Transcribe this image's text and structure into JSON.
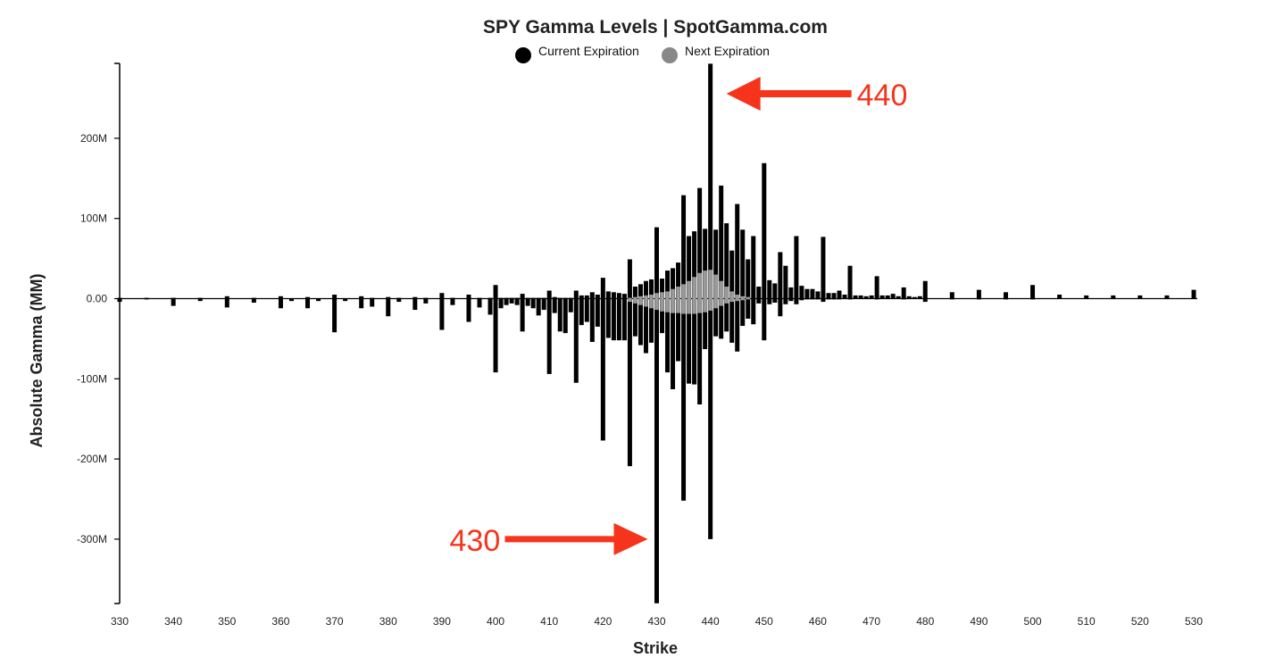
{
  "chart_data": {
    "type": "bar",
    "title": "SPY Gamma Levels | SpotGamma.com",
    "xlabel": "Strike",
    "ylabel": "Absolute Gamma (MM)",
    "xlim": [
      330,
      530
    ],
    "ylim": [
      -380,
      293
    ],
    "x_ticks": [
      "330",
      "340",
      "350",
      "360",
      "370",
      "380",
      "390",
      "400",
      "410",
      "420",
      "430",
      "440",
      "450",
      "460",
      "470",
      "480",
      "490",
      "500",
      "510",
      "520",
      "530"
    ],
    "y_ticks": [
      {
        "value": 200,
        "label": "200M"
      },
      {
        "value": 100,
        "label": "100M"
      },
      {
        "value": 0,
        "label": "0.00"
      },
      {
        "value": -100,
        "label": "-100M"
      },
      {
        "value": -200,
        "label": "-200M"
      },
      {
        "value": -300,
        "label": "-300M"
      }
    ],
    "colors": {
      "current": "#000000",
      "next": "#999999",
      "annotation": "#f5341b"
    },
    "legend": {
      "placement": "top-center",
      "entries": [
        {
          "name": "Current Expiration",
          "color": "#000000"
        },
        {
          "name": "Next Expiration",
          "color": "#888888"
        }
      ]
    },
    "series": [
      {
        "name": "Current Expiration",
        "points": [
          {
            "x": 330,
            "pos": 1,
            "neg": -4
          },
          {
            "x": 335,
            "pos": 1,
            "neg": -1
          },
          {
            "x": 340,
            "pos": 1,
            "neg": -9
          },
          {
            "x": 345,
            "pos": 1,
            "neg": -3
          },
          {
            "x": 350,
            "pos": 3,
            "neg": -11
          },
          {
            "x": 355,
            "pos": 1,
            "neg": -5
          },
          {
            "x": 360,
            "pos": 3,
            "neg": -12
          },
          {
            "x": 362,
            "pos": 0,
            "neg": -3
          },
          {
            "x": 365,
            "pos": 2,
            "neg": -12
          },
          {
            "x": 367,
            "pos": 0,
            "neg": -3
          },
          {
            "x": 370,
            "pos": 5,
            "neg": -42
          },
          {
            "x": 372,
            "pos": 0,
            "neg": -3
          },
          {
            "x": 375,
            "pos": 3,
            "neg": -12
          },
          {
            "x": 377,
            "pos": 1,
            "neg": -10
          },
          {
            "x": 380,
            "pos": 2,
            "neg": -22
          },
          {
            "x": 382,
            "pos": 1,
            "neg": -4
          },
          {
            "x": 385,
            "pos": 2,
            "neg": -14
          },
          {
            "x": 387,
            "pos": 1,
            "neg": -6
          },
          {
            "x": 390,
            "pos": 7,
            "neg": -39
          },
          {
            "x": 392,
            "pos": 1,
            "neg": -8
          },
          {
            "x": 395,
            "pos": 5,
            "neg": -29
          },
          {
            "x": 397,
            "pos": 1,
            "neg": -11
          },
          {
            "x": 399,
            "pos": 1,
            "neg": -20
          },
          {
            "x": 400,
            "pos": 17,
            "neg": -92
          },
          {
            "x": 401,
            "pos": 1,
            "neg": -12
          },
          {
            "x": 402,
            "pos": 1,
            "neg": -8
          },
          {
            "x": 403,
            "pos": 1,
            "neg": -6
          },
          {
            "x": 404,
            "pos": 1,
            "neg": -8
          },
          {
            "x": 405,
            "pos": 6,
            "neg": -41
          },
          {
            "x": 406,
            "pos": 1,
            "neg": -9
          },
          {
            "x": 407,
            "pos": 1,
            "neg": -12
          },
          {
            "x": 408,
            "pos": 1,
            "neg": -21
          },
          {
            "x": 409,
            "pos": 1,
            "neg": -14
          },
          {
            "x": 410,
            "pos": 10,
            "neg": -94
          },
          {
            "x": 411,
            "pos": 2,
            "neg": -18
          },
          {
            "x": 412,
            "pos": 1,
            "neg": -41
          },
          {
            "x": 413,
            "pos": 1,
            "neg": -43
          },
          {
            "x": 414,
            "pos": 1,
            "neg": -17
          },
          {
            "x": 415,
            "pos": 10,
            "neg": -105
          },
          {
            "x": 416,
            "pos": 4,
            "neg": -33
          },
          {
            "x": 417,
            "pos": 4,
            "neg": -29
          },
          {
            "x": 418,
            "pos": 8,
            "neg": -54
          },
          {
            "x": 419,
            "pos": 5,
            "neg": -35
          },
          {
            "x": 420,
            "pos": 26,
            "neg": -177
          },
          {
            "x": 421,
            "pos": 9,
            "neg": -49
          },
          {
            "x": 422,
            "pos": 8,
            "neg": -52
          },
          {
            "x": 423,
            "pos": 7,
            "neg": -52
          },
          {
            "x": 424,
            "pos": 6,
            "neg": -52
          },
          {
            "x": 425,
            "pos": 49,
            "neg": -209
          },
          {
            "x": 426,
            "pos": 15,
            "neg": -47
          },
          {
            "x": 427,
            "pos": 18,
            "neg": -58
          },
          {
            "x": 428,
            "pos": 22,
            "neg": -68
          },
          {
            "x": 429,
            "pos": 24,
            "neg": -55
          },
          {
            "x": 430,
            "pos": 89,
            "neg": -380
          },
          {
            "x": 431,
            "pos": 25,
            "neg": -43
          },
          {
            "x": 432,
            "pos": 35,
            "neg": -92
          },
          {
            "x": 433,
            "pos": 38,
            "neg": -113
          },
          {
            "x": 434,
            "pos": 45,
            "neg": -78
          },
          {
            "x": 435,
            "pos": 129,
            "neg": -252
          },
          {
            "x": 436,
            "pos": 78,
            "neg": -106
          },
          {
            "x": 437,
            "pos": 84,
            "neg": -107
          },
          {
            "x": 438,
            "pos": 138,
            "neg": -132
          },
          {
            "x": 439,
            "pos": 87,
            "neg": -63
          },
          {
            "x": 440,
            "pos": 293,
            "neg": -300
          },
          {
            "x": 441,
            "pos": 86,
            "neg": -47
          },
          {
            "x": 442,
            "pos": 141,
            "neg": -50
          },
          {
            "x": 443,
            "pos": 94,
            "neg": -41
          },
          {
            "x": 444,
            "pos": 60,
            "neg": -55
          },
          {
            "x": 445,
            "pos": 118,
            "neg": -66
          },
          {
            "x": 446,
            "pos": 86,
            "neg": -34
          },
          {
            "x": 447,
            "pos": 49,
            "neg": -25
          },
          {
            "x": 448,
            "pos": 78,
            "neg": -32
          },
          {
            "x": 449,
            "pos": 15,
            "neg": -6
          },
          {
            "x": 450,
            "pos": 169,
            "neg": -52
          },
          {
            "x": 451,
            "pos": 23,
            "neg": -7
          },
          {
            "x": 452,
            "pos": 19,
            "neg": -5
          },
          {
            "x": 453,
            "pos": 58,
            "neg": -22
          },
          {
            "x": 454,
            "pos": 41,
            "neg": -7
          },
          {
            "x": 455,
            "pos": 14,
            "neg": -3
          },
          {
            "x": 456,
            "pos": 78,
            "neg": -7
          },
          {
            "x": 457,
            "pos": 16,
            "neg": -2
          },
          {
            "x": 458,
            "pos": 12,
            "neg": -1
          },
          {
            "x": 459,
            "pos": 12,
            "neg": -1
          },
          {
            "x": 460,
            "pos": 9,
            "neg": -1
          },
          {
            "x": 461,
            "pos": 77,
            "neg": -4
          },
          {
            "x": 462,
            "pos": 7,
            "neg": -1
          },
          {
            "x": 463,
            "pos": 7,
            "neg": -1
          },
          {
            "x": 464,
            "pos": 10,
            "neg": -1
          },
          {
            "x": 465,
            "pos": 5,
            "neg": 0
          },
          {
            "x": 466,
            "pos": 41,
            "neg": -1
          },
          {
            "x": 467,
            "pos": 4,
            "neg": 0
          },
          {
            "x": 468,
            "pos": 4,
            "neg": 0
          },
          {
            "x": 469,
            "pos": 3,
            "neg": 0
          },
          {
            "x": 470,
            "pos": 4,
            "neg": 0
          },
          {
            "x": 471,
            "pos": 28,
            "neg": -1
          },
          {
            "x": 472,
            "pos": 4,
            "neg": 0
          },
          {
            "x": 473,
            "pos": 4,
            "neg": 0
          },
          {
            "x": 474,
            "pos": 6,
            "neg": 0
          },
          {
            "x": 475,
            "pos": 3,
            "neg": 0
          },
          {
            "x": 476,
            "pos": 14,
            "neg": -1
          },
          {
            "x": 477,
            "pos": 3,
            "neg": 0
          },
          {
            "x": 478,
            "pos": 2,
            "neg": 0
          },
          {
            "x": 479,
            "pos": 3,
            "neg": 0
          },
          {
            "x": 480,
            "pos": 22,
            "neg": -4
          },
          {
            "x": 485,
            "pos": 8,
            "neg": -1
          },
          {
            "x": 490,
            "pos": 11,
            "neg": -1
          },
          {
            "x": 495,
            "pos": 8,
            "neg": -1
          },
          {
            "x": 500,
            "pos": 17,
            "neg": -1
          },
          {
            "x": 505,
            "pos": 5,
            "neg": 0
          },
          {
            "x": 510,
            "pos": 4,
            "neg": 0
          },
          {
            "x": 515,
            "pos": 4,
            "neg": 0
          },
          {
            "x": 520,
            "pos": 4,
            "neg": 0
          },
          {
            "x": 525,
            "pos": 4,
            "neg": 0
          },
          {
            "x": 530,
            "pos": 11,
            "neg": 0
          }
        ]
      },
      {
        "name": "Next Expiration",
        "points": [
          {
            "x": 425,
            "pos": 1,
            "neg": -4
          },
          {
            "x": 426,
            "pos": 2,
            "neg": -6
          },
          {
            "x": 427,
            "pos": 3,
            "neg": -8
          },
          {
            "x": 428,
            "pos": 4,
            "neg": -10
          },
          {
            "x": 429,
            "pos": 5,
            "neg": -12
          },
          {
            "x": 430,
            "pos": 7,
            "neg": -14
          },
          {
            "x": 431,
            "pos": 8,
            "neg": -16
          },
          {
            "x": 432,
            "pos": 9,
            "neg": -17
          },
          {
            "x": 433,
            "pos": 12,
            "neg": -18
          },
          {
            "x": 434,
            "pos": 15,
            "neg": -18
          },
          {
            "x": 435,
            "pos": 18,
            "neg": -19
          },
          {
            "x": 436,
            "pos": 22,
            "neg": -19
          },
          {
            "x": 437,
            "pos": 27,
            "neg": -19
          },
          {
            "x": 438,
            "pos": 32,
            "neg": -18
          },
          {
            "x": 439,
            "pos": 35,
            "neg": -17
          },
          {
            "x": 440,
            "pos": 36,
            "neg": -15
          },
          {
            "x": 441,
            "pos": 30,
            "neg": -12
          },
          {
            "x": 442,
            "pos": 22,
            "neg": -9
          },
          {
            "x": 443,
            "pos": 15,
            "neg": -6
          },
          {
            "x": 444,
            "pos": 9,
            "neg": -4
          },
          {
            "x": 445,
            "pos": 5,
            "neg": -3
          },
          {
            "x": 446,
            "pos": 3,
            "neg": -2
          },
          {
            "x": 447,
            "pos": 2,
            "neg": -1
          }
        ]
      }
    ],
    "annotations": [
      {
        "text": "440",
        "target_x": 440,
        "target_y": 240,
        "direction": "left"
      },
      {
        "text": "430",
        "target_x": 430,
        "target_y": -300,
        "direction": "right"
      }
    ]
  }
}
